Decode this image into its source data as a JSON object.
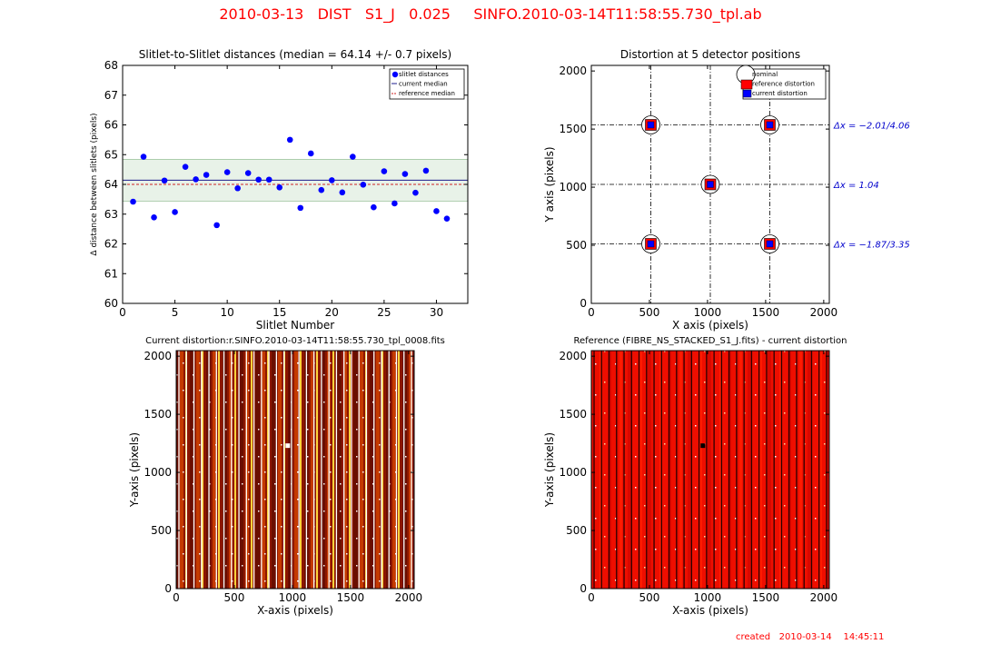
{
  "page": {
    "title": "2010-03-13   DIST   S1_J   0.025     SINFO.2010-03-14T11:58:55.730_tpl.ab",
    "created": "created   2010-03-14    14:45:11"
  },
  "colors": {
    "accent": "#ff0000",
    "points": "#0000ff",
    "band": "#e8f2e8"
  },
  "chart_data": [
    {
      "id": "slitlet",
      "type": "scatter",
      "title": "Slitlet-to-Slitlet distances (median =  64.14 +/- 0.7 pixels)",
      "xlabel": "Slitlet Number",
      "ylabel": "Δ distance between slitlets (pixels)",
      "xlim": [
        0,
        33
      ],
      "ylim": [
        60,
        68
      ],
      "xticks": [
        "0",
        "5",
        "10",
        "15",
        "20",
        "25",
        "30"
      ],
      "yticks": [
        "60",
        "61",
        "62",
        "63",
        "64",
        "65",
        "66",
        "67",
        "68"
      ],
      "legend": {
        "placement": "top-right",
        "entries": [
          "slitlet distances",
          "current median",
          "reference median"
        ]
      },
      "current_median": 64.14,
      "reference_median": 64.0,
      "band": [
        63.44,
        64.84
      ],
      "series": [
        {
          "name": "slitlet distances",
          "x": [
            1,
            2,
            3,
            4,
            5,
            6,
            7,
            8,
            9,
            10,
            11,
            12,
            13,
            14,
            15,
            16,
            17,
            18,
            19,
            20,
            21,
            22,
            23,
            24,
            25,
            26,
            27,
            28,
            29,
            30,
            31
          ],
          "y": [
            63.42,
            64.93,
            62.89,
            64.13,
            63.07,
            64.59,
            64.17,
            64.32,
            62.63,
            64.41,
            63.87,
            64.38,
            64.16,
            64.16,
            63.9,
            65.5,
            63.21,
            65.04,
            63.81,
            64.14,
            63.73,
            64.93,
            63.99,
            63.23,
            64.44,
            63.36,
            64.35,
            63.72,
            64.46,
            63.1,
            62.85
          ]
        }
      ]
    },
    {
      "id": "distortion",
      "type": "scatter",
      "title": "Distortion at 5 detector positions",
      "xlabel": "X axis (pixels)",
      "ylabel": "Y axis (pixels)",
      "xlim": [
        0,
        2048
      ],
      "ylim": [
        0,
        2048
      ],
      "xticks": [
        "0",
        "500",
        "1000",
        "1500",
        "2000"
      ],
      "yticks": [
        "0",
        "500",
        "1000",
        "1500",
        "2000"
      ],
      "grid_x": [
        512,
        1024,
        1536
      ],
      "grid_y": [
        512,
        1024,
        1536
      ],
      "legend": {
        "placement": "top-right",
        "entries": [
          "nominal",
          "reference distortion",
          "current distortion"
        ]
      },
      "points": [
        {
          "x": 512,
          "y": 1536
        },
        {
          "x": 1536,
          "y": 1536
        },
        {
          "x": 1024,
          "y": 1024
        },
        {
          "x": 512,
          "y": 512
        },
        {
          "x": 1536,
          "y": 512
        }
      ],
      "annotations": [
        {
          "y": 1536,
          "text": "Δx = −2.01/4.06"
        },
        {
          "y": 1024,
          "text": "Δx = 1.04"
        },
        {
          "y": 512,
          "text": "Δx = −1.87/3.35"
        }
      ]
    },
    {
      "id": "current-image",
      "type": "heatmap",
      "title": "Current distortion:r.SINFO.2010-03-14T11:58:55.730_tpl_0008.fits",
      "xlabel": "X-axis (pixels)",
      "ylabel": "Y-axis (pixels)",
      "xlim": [
        0,
        2048
      ],
      "ylim": [
        0,
        2048
      ],
      "xticks": [
        "0",
        "500",
        "1000",
        "1500",
        "2000"
      ],
      "yticks": [
        "0",
        "500",
        "1000",
        "1500",
        "2000"
      ],
      "colormap": "hot"
    },
    {
      "id": "reference-image",
      "type": "heatmap",
      "title": "Reference (FIBRE_NS_STACKED_S1_J.fits) - current distortion",
      "xlabel": "X-axis (pixels)",
      "ylabel": "Y-axis (pixels)",
      "xlim": [
        0,
        2048
      ],
      "ylim": [
        0,
        2048
      ],
      "xticks": [
        "0",
        "500",
        "1000",
        "1500",
        "2000"
      ],
      "yticks": [
        "0",
        "500",
        "1000",
        "1500",
        "2000"
      ],
      "colormap": "hot"
    }
  ]
}
